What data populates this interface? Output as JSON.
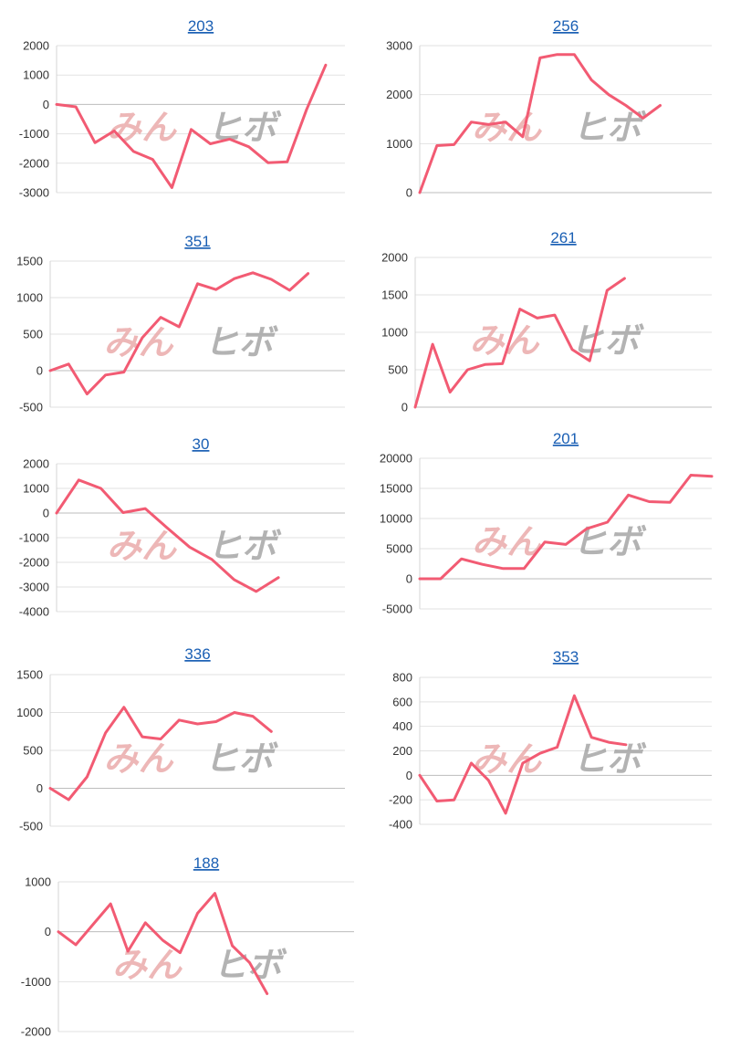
{
  "colors": {
    "line": "#f25b73",
    "title": "#1a5fb4",
    "grid": "#e2e2e2"
  },
  "watermark": {
    "part1": "みん",
    "part2": "ヒボ"
  },
  "chart_data": [
    {
      "type": "line",
      "title": "203",
      "yticks": [
        2000,
        1000,
        0,
        -1000,
        -2000,
        -3000
      ],
      "ylim": [
        -3000,
        2000
      ],
      "values": [
        0,
        -80,
        -1300,
        -900,
        -1600,
        -1870,
        -2830,
        -850,
        -1340,
        -1180,
        -1440,
        -1980,
        -1950,
        -180,
        1340
      ]
    },
    {
      "type": "line",
      "title": "256",
      "yticks": [
        3000,
        2000,
        1000,
        0
      ],
      "ylim": [
        0,
        3000
      ],
      "values": [
        0,
        960,
        980,
        1440,
        1390,
        1440,
        1140,
        2750,
        2820,
        2820,
        2300,
        2000,
        1780,
        1520,
        1780
      ]
    },
    {
      "type": "line",
      "title": "351",
      "yticks": [
        1500,
        1000,
        500,
        0,
        -500
      ],
      "ylim": [
        -500,
        1500
      ],
      "values": [
        0,
        90,
        -320,
        -60,
        -20,
        450,
        730,
        600,
        1190,
        1110,
        1260,
        1340,
        1250,
        1100,
        1330
      ]
    },
    {
      "type": "line",
      "title": "261",
      "yticks": [
        2000,
        1500,
        1000,
        500,
        0
      ],
      "ylim": [
        0,
        2000
      ],
      "values": [
        0,
        840,
        200,
        500,
        570,
        580,
        1310,
        1190,
        1230,
        770,
        620,
        1560,
        1720
      ]
    },
    {
      "type": "line",
      "title": "30",
      "yticks": [
        2000,
        1000,
        0,
        -1000,
        -2000,
        -3000,
        -4000
      ],
      "ylim": [
        -4000,
        2000
      ],
      "values": [
        0,
        1340,
        1000,
        20,
        180,
        -610,
        -1380,
        -1880,
        -2700,
        -3180,
        -2620
      ]
    },
    {
      "type": "line",
      "title": "201",
      "yticks": [
        20000,
        15000,
        10000,
        5000,
        0,
        -5000
      ],
      "ylim": [
        -5000,
        20000
      ],
      "values": [
        0,
        0,
        3300,
        2400,
        1700,
        1700,
        6100,
        5700,
        8300,
        9400,
        13900,
        12800,
        12700,
        17200,
        17000
      ]
    },
    {
      "type": "line",
      "title": "336",
      "yticks": [
        1500,
        1000,
        500,
        0,
        -500
      ],
      "ylim": [
        -500,
        1500
      ],
      "values": [
        0,
        -150,
        150,
        730,
        1070,
        680,
        650,
        900,
        850,
        880,
        1000,
        950,
        750
      ]
    },
    {
      "type": "line",
      "title": "353",
      "yticks": [
        800,
        600,
        400,
        200,
        0,
        -200,
        -400
      ],
      "ylim": [
        -400,
        800
      ],
      "values": [
        0,
        -210,
        -200,
        100,
        -40,
        -310,
        100,
        180,
        230,
        650,
        310,
        270,
        250
      ]
    },
    {
      "type": "line",
      "title": "188",
      "yticks": [
        1000,
        0,
        -1000,
        -2000
      ],
      "ylim": [
        -2000,
        1000
      ],
      "values": [
        0,
        -260,
        150,
        560,
        -390,
        180,
        -170,
        -420,
        370,
        770,
        -280,
        -620,
        -1240
      ]
    }
  ]
}
